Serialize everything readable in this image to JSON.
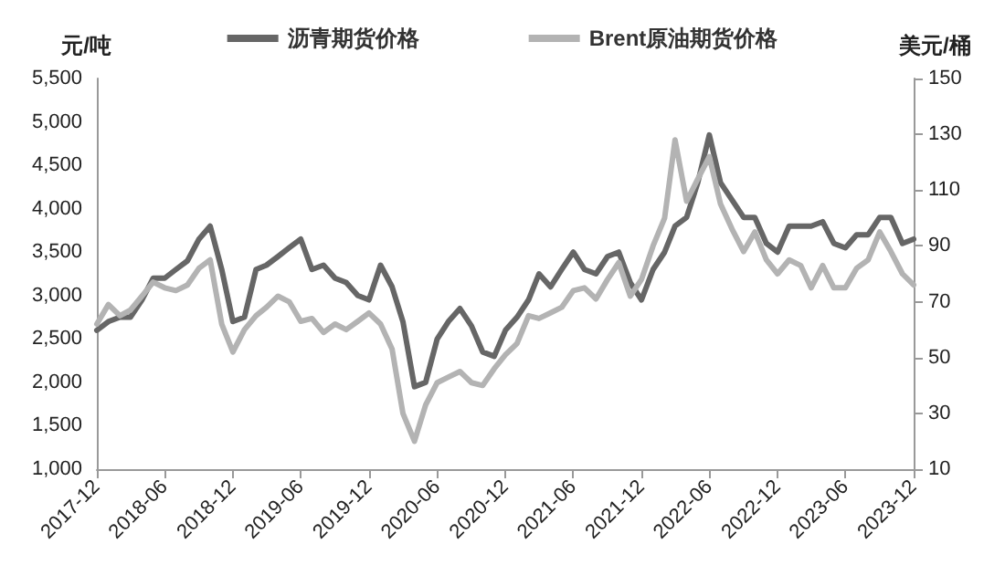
{
  "chart_data": {
    "type": "line",
    "ylabel": "元/吨",
    "y2label": "美元/桶",
    "x": [
      "2017-12",
      "2018-01",
      "2018-02",
      "2018-03",
      "2018-04",
      "2018-05",
      "2018-06",
      "2018-07",
      "2018-08",
      "2018-09",
      "2018-10",
      "2018-11",
      "2018-12",
      "2019-01",
      "2019-02",
      "2019-03",
      "2019-04",
      "2019-05",
      "2019-06",
      "2019-07",
      "2019-08",
      "2019-09",
      "2019-10",
      "2019-11",
      "2019-12",
      "2020-01",
      "2020-02",
      "2020-03",
      "2020-04",
      "2020-05",
      "2020-06",
      "2020-07",
      "2020-08",
      "2020-09",
      "2020-10",
      "2020-11",
      "2020-12",
      "2021-01",
      "2021-02",
      "2021-03",
      "2021-04",
      "2021-05",
      "2021-06",
      "2021-07",
      "2021-08",
      "2021-09",
      "2021-10",
      "2021-11",
      "2021-12",
      "2022-01",
      "2022-02",
      "2022-03",
      "2022-04",
      "2022-05",
      "2022-06",
      "2022-07",
      "2022-08",
      "2022-09",
      "2022-10",
      "2022-11",
      "2022-12",
      "2023-01",
      "2023-02",
      "2023-03",
      "2023-04",
      "2023-05",
      "2023-06",
      "2023-07",
      "2023-08",
      "2023-09",
      "2023-10",
      "2023-11",
      "2023-12"
    ],
    "series": [
      {
        "name": "沥青期货价格",
        "color": "#666666",
        "values": [
          2600,
          2700,
          2750,
          2750,
          2950,
          3200,
          3200,
          3300,
          3400,
          3650,
          3800,
          3300,
          2700,
          2750,
          3300,
          3350,
          3450,
          3550,
          3650,
          3300,
          3350,
          3200,
          3150,
          3000,
          2950,
          3350,
          3100,
          2700,
          1950,
          2000,
          2500,
          2700,
          2850,
          2650,
          2350,
          2300,
          2600,
          2750,
          2950,
          3250,
          3100,
          3300,
          3500,
          3300,
          3250,
          3450,
          3500,
          3150,
          2950,
          3300,
          3500,
          3800,
          3900,
          4300,
          4850,
          4300,
          4100,
          3900,
          3900,
          3600,
          3500,
          3800,
          3800,
          3800,
          3850,
          3600,
          3550,
          3700,
          3700,
          3900,
          3900,
          3600,
          3650
        ]
      },
      {
        "name": "Brent原油期货价格",
        "color": "#b3b3b3",
        "axis": "y2",
        "values": [
          62,
          69,
          65,
          67,
          72,
          77,
          75,
          74,
          76,
          82,
          85,
          62,
          52,
          60,
          65,
          68,
          72,
          70,
          63,
          64,
          59,
          62,
          60,
          63,
          66,
          62,
          53,
          30,
          20,
          33,
          41,
          43,
          45,
          41,
          40,
          46,
          51,
          55,
          65,
          64,
          66,
          68,
          74,
          75,
          71,
          78,
          84,
          72,
          78,
          90,
          100,
          128,
          106,
          114,
          122,
          105,
          96,
          88,
          95,
          85,
          80,
          85,
          83,
          75,
          83,
          75,
          75,
          82,
          85,
          95,
          88,
          80,
          76
        ]
      }
    ],
    "xlim": [
      "2017-12",
      "2023-12"
    ],
    "xticks": [
      "2017-12",
      "2018-06",
      "2018-12",
      "2019-06",
      "2019-12",
      "2020-06",
      "2020-12",
      "2021-06",
      "2021-12",
      "2022-06",
      "2022-12",
      "2023-06",
      "2023-12"
    ],
    "ylim": [
      1000,
      5500
    ],
    "yticks": [
      {
        "value": 1000,
        "label": "1,000"
      },
      {
        "value": 1500,
        "label": "1,500"
      },
      {
        "value": 2000,
        "label": "2,000"
      },
      {
        "value": 2500,
        "label": "2,500"
      },
      {
        "value": 3000,
        "label": "3,000"
      },
      {
        "value": 3500,
        "label": "3,500"
      },
      {
        "value": 4000,
        "label": "4,000"
      },
      {
        "value": 4500,
        "label": "4,500"
      },
      {
        "value": 5000,
        "label": "5,000"
      },
      {
        "value": 5500,
        "label": "5,500"
      }
    ],
    "y2lim": [
      10,
      150
    ],
    "y2ticks": [
      10,
      30,
      50,
      70,
      90,
      110,
      130,
      150
    ],
    "legend": "top",
    "grid": false,
    "marker": "none",
    "line_style": "solid"
  }
}
